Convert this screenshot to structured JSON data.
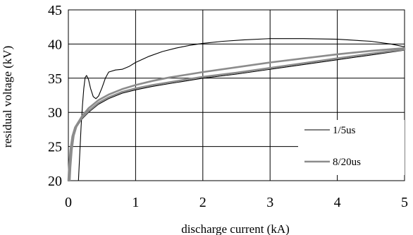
{
  "chart_data": {
    "type": "line",
    "title": "",
    "xlabel": "discharge current (kA)",
    "ylabel": "residual voltage (kV)",
    "xlim": [
      0,
      5
    ],
    "ylim": [
      20,
      45
    ],
    "xticks": [
      "0",
      "1",
      "2",
      "3",
      "4",
      "5"
    ],
    "yticks": [
      "20",
      "25",
      "30",
      "35",
      "40",
      "45"
    ],
    "grid": true,
    "legend_position": "lower-right",
    "series": [
      {
        "name": "1/5us",
        "color": "#000000",
        "segments": [
          [
            [
              0.15,
              20
            ],
            [
              0.17,
              24
            ],
            [
              0.19,
              28
            ],
            [
              0.21,
              31
            ],
            [
              0.23,
              33.5
            ],
            [
              0.25,
              35.1
            ],
            [
              0.27,
              35.4
            ],
            [
              0.3,
              34.8
            ],
            [
              0.33,
              33.5
            ],
            [
              0.37,
              32.3
            ],
            [
              0.41,
              32.0
            ],
            [
              0.45,
              32.4
            ],
            [
              0.5,
              33.6
            ],
            [
              0.55,
              35.0
            ],
            [
              0.6,
              35.9
            ],
            [
              0.7,
              36.2
            ],
            [
              0.8,
              36.3
            ],
            [
              0.9,
              36.7
            ],
            [
              1.0,
              37.3
            ],
            [
              1.2,
              38.2
            ],
            [
              1.4,
              38.9
            ],
            [
              1.6,
              39.4
            ],
            [
              1.8,
              39.8
            ],
            [
              2.0,
              40.1
            ],
            [
              2.3,
              40.4
            ],
            [
              2.6,
              40.6
            ],
            [
              3.0,
              40.8
            ],
            [
              3.5,
              40.8
            ],
            [
              4.0,
              40.7
            ],
            [
              4.5,
              40.4
            ],
            [
              4.8,
              40.0
            ],
            [
              5.0,
              39.6
            ]
          ],
          [
            [
              0.02,
              20
            ],
            [
              0.03,
              22
            ],
            [
              0.05,
              24.5
            ],
            [
              0.08,
              26.5
            ],
            [
              0.12,
              27.8
            ],
            [
              0.2,
              29.0
            ],
            [
              0.3,
              30.0
            ],
            [
              0.45,
              31.2
            ],
            [
              0.6,
              32.0
            ],
            [
              0.8,
              32.8
            ],
            [
              1.0,
              33.3
            ],
            [
              1.25,
              33.8
            ],
            [
              1.5,
              34.2
            ],
            [
              1.75,
              34.6
            ],
            [
              2.0,
              35.0
            ],
            [
              2.5,
              35.6
            ],
            [
              3.0,
              36.3
            ],
            [
              3.5,
              37.0
            ],
            [
              4.0,
              37.7
            ],
            [
              4.5,
              38.4
            ],
            [
              5.0,
              39.1
            ]
          ]
        ]
      },
      {
        "name": "8/20us",
        "color": "#8c8c8c",
        "segments": [
          [
            [
              0.0,
              20
            ],
            [
              0.01,
              22
            ],
            [
              0.03,
              24.5
            ],
            [
              0.06,
              26.5
            ],
            [
              0.1,
              27.8
            ],
            [
              0.2,
              29.4
            ],
            [
              0.3,
              30.6
            ],
            [
              0.45,
              31.8
            ],
            [
              0.6,
              32.6
            ],
            [
              0.8,
              33.4
            ],
            [
              1.0,
              34.0
            ],
            [
              1.25,
              34.6
            ],
            [
              1.5,
              35.1
            ],
            [
              1.75,
              35.5
            ],
            [
              2.0,
              35.9
            ],
            [
              2.5,
              36.6
            ],
            [
              3.0,
              37.3
            ],
            [
              3.5,
              37.9
            ],
            [
              4.0,
              38.5
            ],
            [
              4.5,
              39.0
            ],
            [
              5.0,
              39.4
            ]
          ],
          [
            [
              0.02,
              20
            ],
            [
              0.03,
              22
            ],
            [
              0.05,
              24.5
            ],
            [
              0.08,
              26.6
            ],
            [
              0.12,
              27.9
            ],
            [
              0.2,
              29.2
            ],
            [
              0.3,
              30.2
            ],
            [
              0.45,
              31.4
            ],
            [
              0.6,
              32.2
            ],
            [
              0.8,
              33.0
            ],
            [
              1.0,
              33.5
            ],
            [
              1.25,
              34.0
            ],
            [
              1.5,
              34.4
            ],
            [
              1.75,
              34.8
            ],
            [
              2.0,
              35.2
            ],
            [
              2.5,
              35.8
            ],
            [
              3.0,
              36.5
            ],
            [
              3.5,
              37.2
            ],
            [
              4.0,
              37.9
            ],
            [
              4.5,
              38.6
            ],
            [
              5.0,
              39.2
            ]
          ]
        ]
      }
    ]
  }
}
